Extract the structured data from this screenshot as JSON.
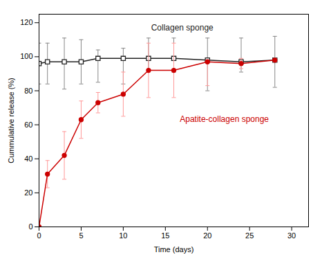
{
  "chart_data": {
    "type": "line",
    "xlabel": "Time (days)",
    "ylabel": "Cummulative release (%)",
    "xlim": [
      0,
      32
    ],
    "ylim": [
      0,
      125
    ],
    "xticks": [
      0,
      5,
      10,
      15,
      20,
      25,
      30
    ],
    "yticks": [
      0,
      20,
      40,
      60,
      80,
      100,
      120
    ],
    "grid": false,
    "x": [
      0,
      1,
      3,
      5,
      7,
      10,
      13,
      16,
      20,
      24,
      28
    ],
    "series": [
      {
        "color": "#222222",
        "error_color": "#888888",
        "marker": "square",
        "values": [
          96,
          97,
          97,
          97,
          99,
          99,
          99,
          99,
          98,
          97,
          98
        ],
        "error_lower": [
          12,
          13,
          16,
          13,
          14,
          15,
          7,
          8,
          18,
          6,
          16
        ],
        "error_upper": [
          12,
          11,
          14,
          13,
          5,
          6,
          12,
          12,
          13,
          14,
          14
        ]
      },
      {
        "color": "#cc0000",
        "error_color": "#ff9999",
        "marker": "circle",
        "values": [
          0,
          31,
          42,
          63,
          73,
          78,
          92,
          92,
          97,
          96,
          98
        ],
        "error_lower": [
          0,
          8,
          14,
          11,
          6,
          13,
          16,
          16,
          14,
          3,
          1
        ],
        "error_upper": [
          0,
          8,
          14,
          11,
          6,
          13,
          16,
          16,
          1,
          3,
          1
        ]
      }
    ],
    "annotations": [
      {
        "text": "Collagen sponge",
        "x": 17,
        "y": 119,
        "color": "#222222"
      },
      {
        "text": "Apatite-collagen sponge",
        "x": 22,
        "y": 65,
        "color": "#cc0000"
      }
    ]
  }
}
